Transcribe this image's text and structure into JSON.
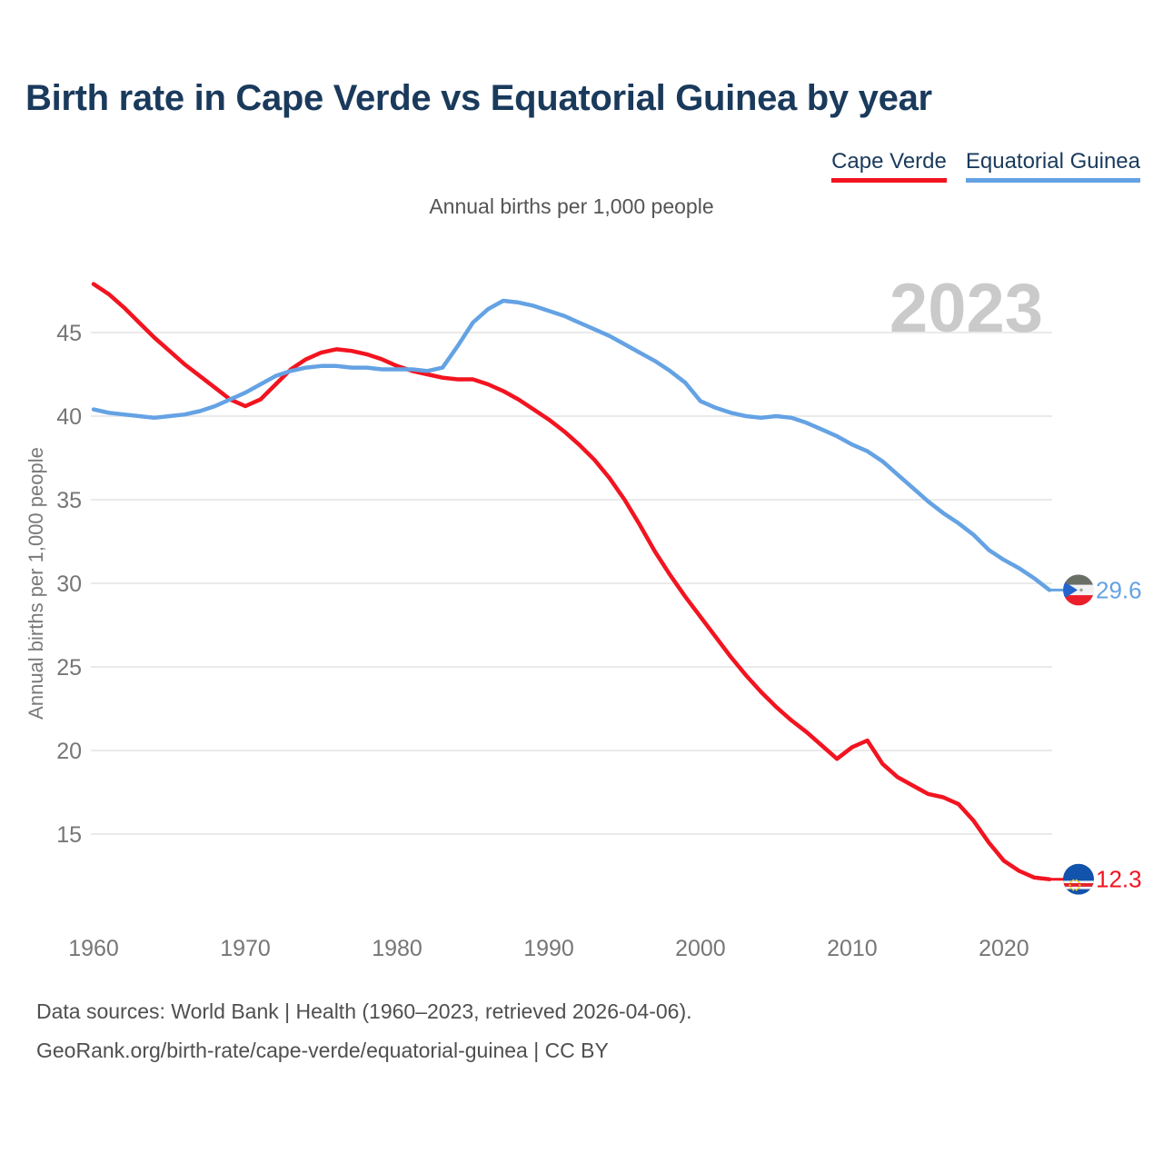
{
  "title": "Birth rate in Cape Verde vs Equatorial Guinea by year",
  "subtitle": "Annual births per 1,000 people",
  "watermark": "2023",
  "legend": {
    "cape_verde": "Cape Verde",
    "equatorial_guinea": "Equatorial Guinea"
  },
  "end_labels": {
    "equatorial_guinea": "29.6",
    "cape_verde": "12.3"
  },
  "footer": {
    "line1": "Data sources: World Bank | Health (1960–2023, retrieved 2026-04-06).",
    "line2": "GeoRank.org/birth-rate/cape-verde/equatorial-guinea | CC BY"
  },
  "colors": {
    "cape_verde_red": "#f21420",
    "equatorial_guinea_blue": "#64a2e4",
    "title_navy": "#1a3a5c",
    "gridline": "#eaeaea",
    "tick_gray": "#767676",
    "watermark_gray": "#cacaca",
    "footer_gray": "#4f4f4f"
  },
  "chart_data": {
    "type": "line",
    "title": "Birth rate in Cape Verde vs Equatorial Guinea by year",
    "xlabel": "",
    "ylabel": "Annual births per 1,000 people",
    "grid": true,
    "legend_position": "top-right",
    "xlim": [
      1960,
      2023
    ],
    "ylim": [
      11.5,
      48.5
    ],
    "y_ticks": [
      15,
      20,
      25,
      30,
      35,
      40,
      45
    ],
    "x_ticks": [
      1960,
      1970,
      1980,
      1990,
      2000,
      2010,
      2020
    ],
    "x": [
      1960,
      1961,
      1962,
      1963,
      1964,
      1965,
      1966,
      1967,
      1968,
      1969,
      1970,
      1971,
      1972,
      1973,
      1974,
      1975,
      1976,
      1977,
      1978,
      1979,
      1980,
      1981,
      1982,
      1983,
      1984,
      1985,
      1986,
      1987,
      1988,
      1989,
      1990,
      1991,
      1992,
      1993,
      1994,
      1995,
      1996,
      1997,
      1998,
      1999,
      2000,
      2001,
      2002,
      2003,
      2004,
      2005,
      2006,
      2007,
      2008,
      2009,
      2010,
      2011,
      2012,
      2013,
      2014,
      2015,
      2016,
      2017,
      2018,
      2019,
      2020,
      2021,
      2022,
      2023
    ],
    "series": [
      {
        "id": "cape-verde",
        "key": "cape_verde",
        "name": "Cape Verde",
        "color": "#f21420",
        "end_value": 12.3,
        "values": [
          47.9,
          47.3,
          46.5,
          45.6,
          44.7,
          43.9,
          43.1,
          42.4,
          41.7,
          41.0,
          40.6,
          41.0,
          41.9,
          42.8,
          43.4,
          43.8,
          44.0,
          43.9,
          43.7,
          43.4,
          43.0,
          42.7,
          42.5,
          42.3,
          42.2,
          42.2,
          41.9,
          41.5,
          41.0,
          40.4,
          39.8,
          39.1,
          38.3,
          37.4,
          36.3,
          35.0,
          33.5,
          31.9,
          30.5,
          29.2,
          28.0,
          26.8,
          25.6,
          24.5,
          23.5,
          22.6,
          21.8,
          21.1,
          20.3,
          19.5,
          20.2,
          20.6,
          19.2,
          18.4,
          17.9,
          17.4,
          17.2,
          16.8,
          15.8,
          14.5,
          13.4,
          12.8,
          12.4,
          12.3
        ]
      },
      {
        "id": "equatorial-guinea",
        "key": "equatorial_guinea",
        "name": "Equatorial Guinea",
        "color": "#64a2e4",
        "end_value": 29.6,
        "values": [
          40.4,
          40.2,
          40.1,
          40.0,
          39.9,
          40.0,
          40.1,
          40.3,
          40.6,
          41.0,
          41.4,
          41.9,
          42.4,
          42.7,
          42.9,
          43.0,
          43.0,
          42.9,
          42.9,
          42.8,
          42.8,
          42.8,
          42.7,
          42.9,
          44.2,
          45.6,
          46.4,
          46.9,
          46.8,
          46.6,
          46.3,
          46.0,
          45.6,
          45.2,
          44.8,
          44.3,
          43.8,
          43.3,
          42.7,
          42.0,
          40.9,
          40.5,
          40.2,
          40.0,
          39.9,
          40.0,
          39.9,
          39.6,
          39.2,
          38.8,
          38.3,
          37.9,
          37.3,
          36.5,
          35.7,
          34.9,
          34.2,
          33.6,
          32.9,
          32.0,
          31.4,
          30.9,
          30.3,
          29.6
        ]
      }
    ]
  }
}
